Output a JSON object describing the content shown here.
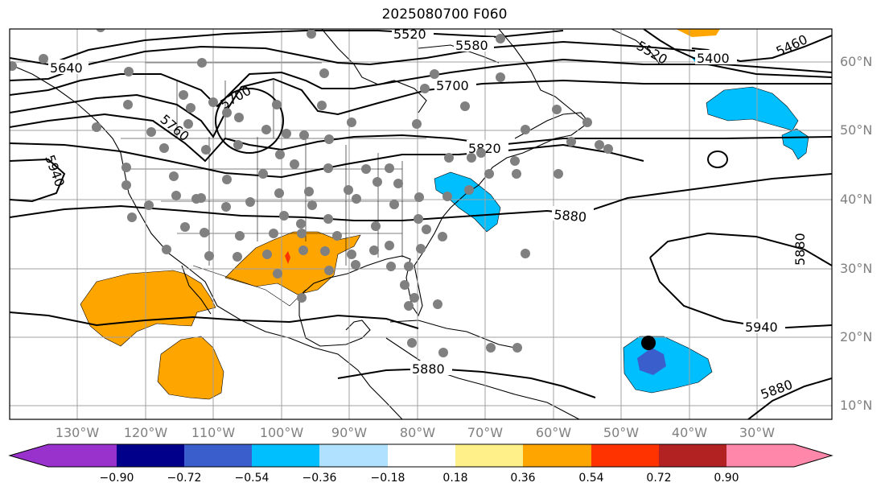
{
  "title": "2025080700 F060",
  "lat_labels": [
    "60°N",
    "50°N",
    "40°N",
    "30°N",
    "20°N",
    "10°N"
  ],
  "lon_labels": [
    "130°W",
    "120°W",
    "110°W",
    "100°W",
    "90°W",
    "80°W",
    "70°W",
    "60°W",
    "50°W",
    "40°W",
    "30°W"
  ],
  "colorbar": {
    "ticks": [
      "−0.90",
      "−0.72",
      "−0.54",
      "−0.36",
      "−0.18",
      "0.18",
      "0.36",
      "0.54",
      "0.72",
      "0.90"
    ],
    "colors": [
      "#9932cc",
      "#00008b",
      "#3a5fcd",
      "#00bfff",
      "#b0e2ff",
      "#ffffff",
      "#fff08a",
      "#ffa500",
      "#ff3300",
      "#b22222",
      "#ff88aa"
    ]
  },
  "contour_labels": [
    "5520",
    "5580",
    "5640",
    "5700",
    "5760",
    "5820",
    "5880",
    "5940",
    "5460",
    "5400",
    "5520",
    "5940",
    "5880",
    "5880",
    "5940",
    "5880",
    "5700"
  ],
  "colors": {
    "fill_orange": "#ffa500",
    "fill_cyan": "#00bfff",
    "fill_blue": "#3a5fcd",
    "fill_red": "#ff3300",
    "station_dot": "#808080",
    "grid": "#a0a0a0"
  }
}
